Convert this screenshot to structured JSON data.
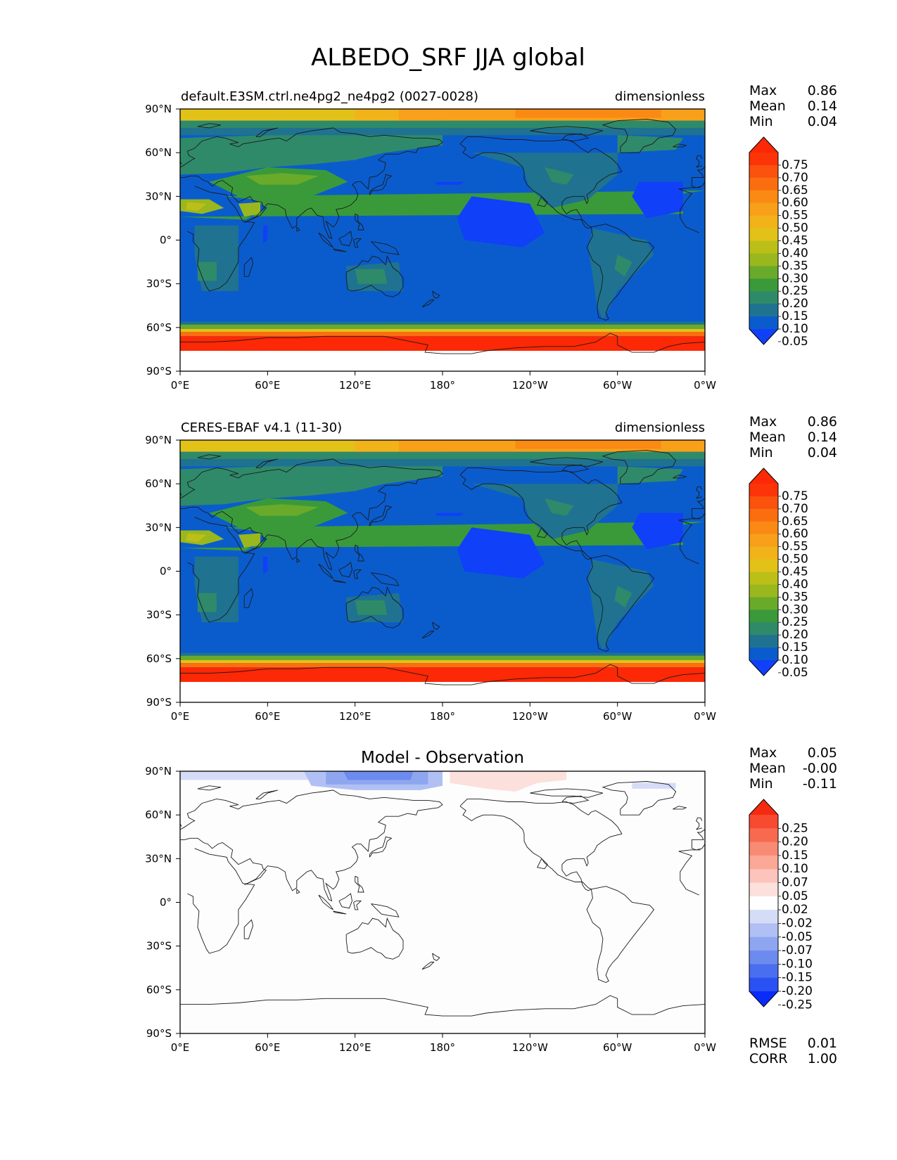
{
  "suptitle": "ALBEDO_SRF JJA global",
  "panels": [
    {
      "left_title": "default.E3SM.ctrl.ne4pg2_ne4pg2 (0027-0028)",
      "center_title": "",
      "right_title": "dimensionless",
      "field": "test",
      "stats": {
        "labels": [
          "Max",
          "Mean",
          "Min"
        ],
        "values": [
          "0.86",
          "0.14",
          "0.04"
        ]
      },
      "colorbar": {
        "kind": "sequential",
        "labels": [
          "0.75",
          "0.70",
          "0.65",
          "0.60",
          "0.55",
          "0.50",
          "0.45",
          "0.40",
          "0.35",
          "0.30",
          "0.25",
          "0.20",
          "0.15",
          "0.10",
          "0.05"
        ],
        "colors": [
          "#1040f8",
          "#0a5ccc",
          "#1f7390",
          "#2f8a6a",
          "#3a9a3a",
          "#6aaa2a",
          "#9ab81e",
          "#bcbf18",
          "#e2c218",
          "#f2b21a",
          "#f8a01a",
          "#fa8a14",
          "#fb6e10",
          "#fb520e",
          "#fc3408",
          "#fd2805"
        ]
      },
      "extents": {
        "xlim": [
          0,
          360
        ],
        "ylim": [
          -90,
          90
        ]
      }
    },
    {
      "left_title": "CERES-EBAF v4.1 (11-30)",
      "center_title": "",
      "right_title": "dimensionless",
      "field": "ref",
      "stats": {
        "labels": [
          "Max",
          "Mean",
          "Min"
        ],
        "values": [
          "0.86",
          "0.14",
          "0.04"
        ]
      },
      "colorbar": {
        "kind": "sequential",
        "labels": [
          "0.75",
          "0.70",
          "0.65",
          "0.60",
          "0.55",
          "0.50",
          "0.45",
          "0.40",
          "0.35",
          "0.30",
          "0.25",
          "0.20",
          "0.15",
          "0.10",
          "0.05"
        ],
        "colors": [
          "#1040f8",
          "#0a5ccc",
          "#1f7390",
          "#2f8a6a",
          "#3a9a3a",
          "#6aaa2a",
          "#9ab81e",
          "#bcbf18",
          "#e2c218",
          "#f2b21a",
          "#f8a01a",
          "#fa8a14",
          "#fb6e10",
          "#fb520e",
          "#fc3408",
          "#fd2805"
        ]
      }
    },
    {
      "left_title": "",
      "center_title": "Model - Observation",
      "right_title": "",
      "field": "diff",
      "stats": {
        "labels": [
          "Max",
          "Mean",
          "Min"
        ],
        "values": [
          "0.05",
          "-0.00",
          "-0.11"
        ]
      },
      "extra_stats": {
        "labels": [
          "RMSE",
          "CORR"
        ],
        "values": [
          "0.01",
          "1.00"
        ]
      },
      "colorbar": {
        "kind": "diverging",
        "labels": [
          "0.25",
          "0.20",
          "0.15",
          "0.10",
          "0.07",
          "0.05",
          "0.02",
          "-0.02",
          "-0.05",
          "-0.07",
          "-0.10",
          "-0.15",
          "-0.20",
          "-0.25"
        ],
        "colors": [
          "#0a2cfa",
          "#2a52f2",
          "#4a6ef0",
          "#6d8aee",
          "#8ea6f0",
          "#b0c0f4",
          "#d4dcf8",
          "#ffffff",
          "#fce0dc",
          "#fcc4bc",
          "#fba896",
          "#f98a74",
          "#f86a50",
          "#f74a30",
          "#f62a10"
        ]
      }
    }
  ],
  "axes": {
    "lon_ticks": [
      "0°E",
      "60°E",
      "120°E",
      "180°",
      "120°W",
      "60°W",
      "0°W"
    ],
    "lat_ticks": [
      "90°N",
      "60°N",
      "30°N",
      "0°",
      "30°S",
      "60°S",
      "90°S"
    ]
  },
  "colors": {
    "land_line": "#1a1a1a",
    "frame": "#000000"
  }
}
